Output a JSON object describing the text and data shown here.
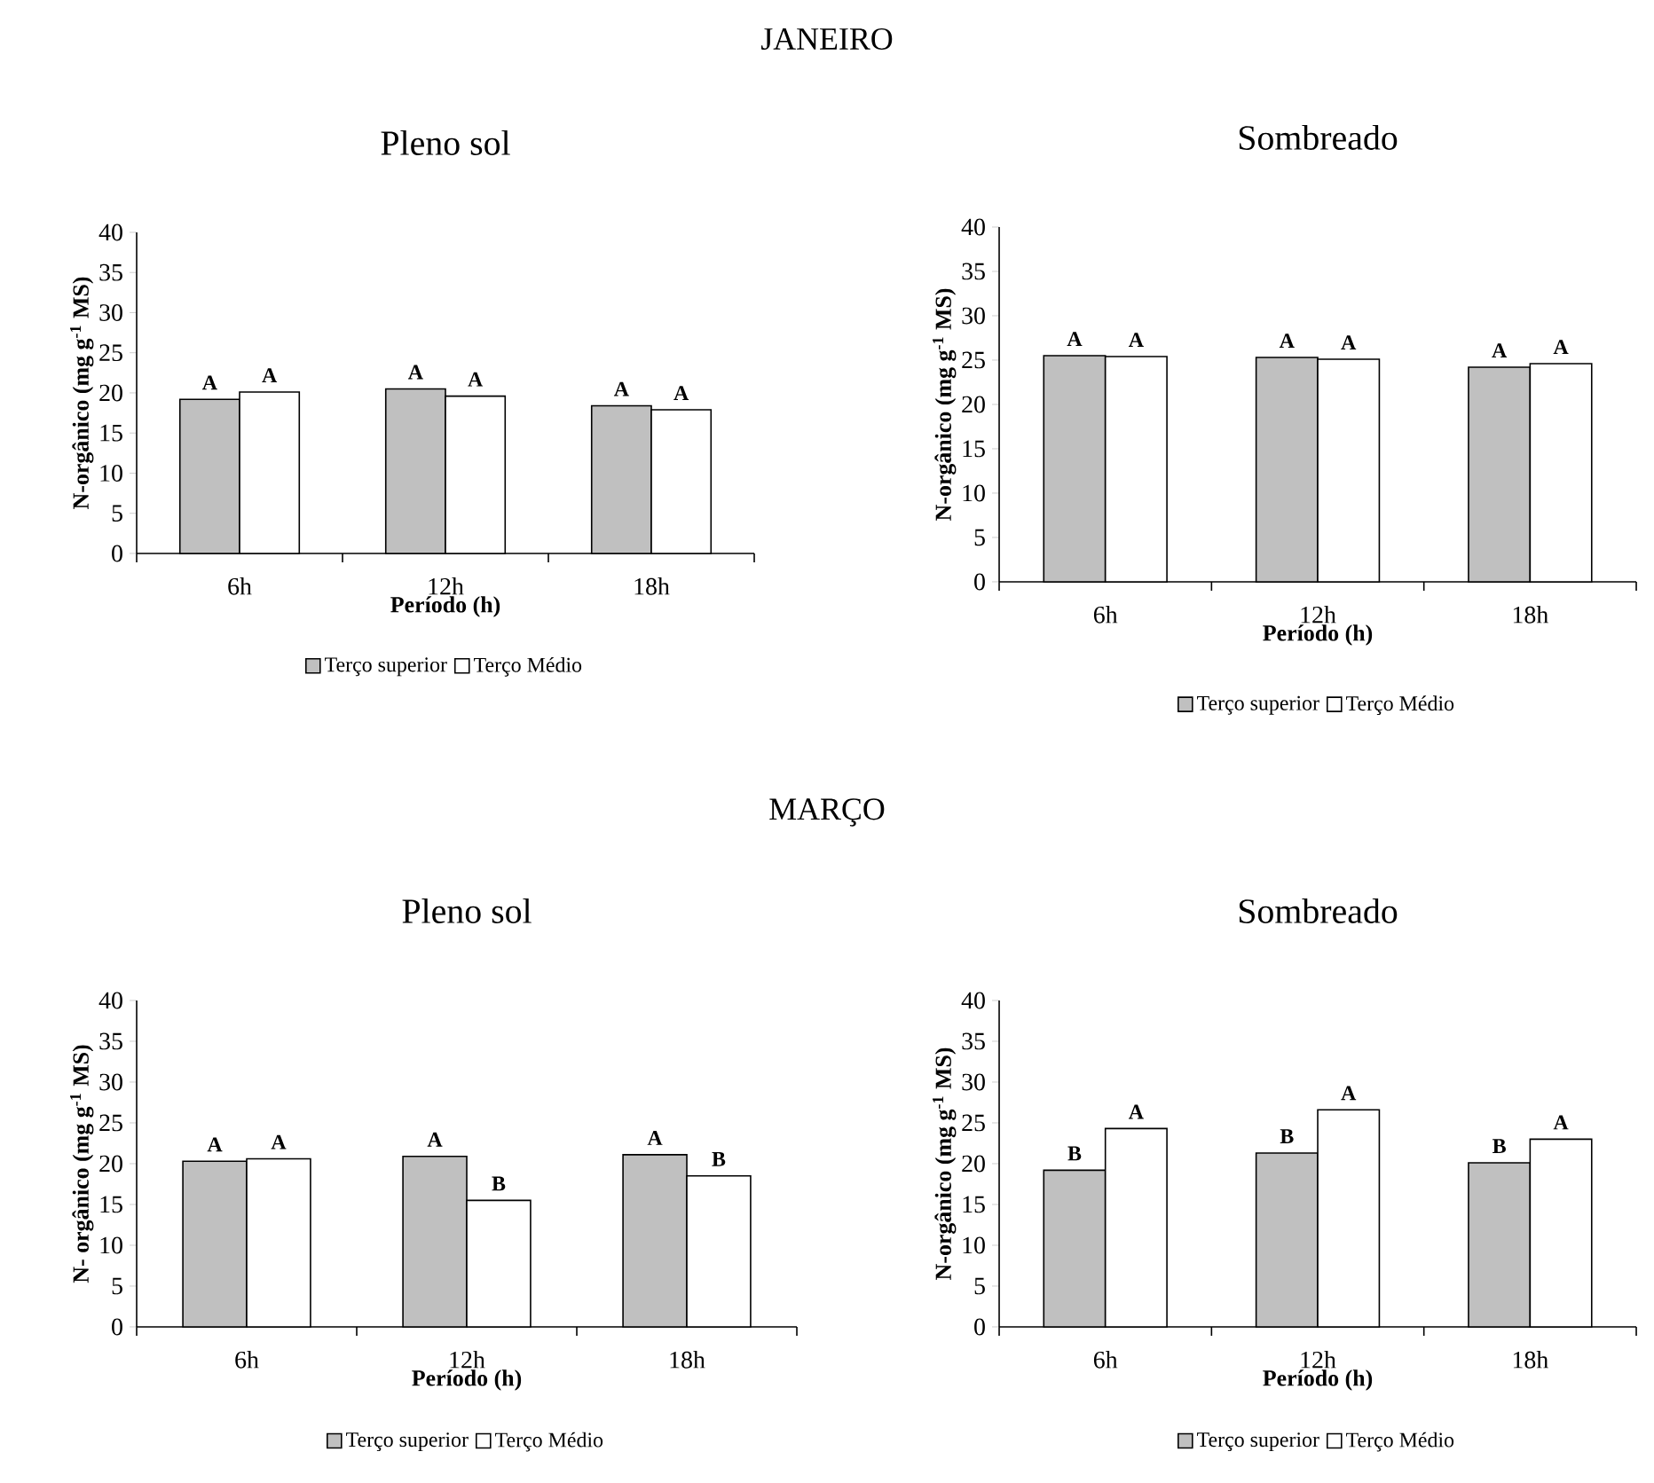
{
  "chart_data": [
    {
      "type": "bar",
      "title": "Pleno sol",
      "annotations": [
        "JANEIRO"
      ],
      "xlabel": "Período (h)",
      "ylabel": "N-orgânico (mg g$^{-1}$ MS)",
      "categories": [
        "6h",
        "12h",
        "18h"
      ],
      "ylim": [
        0,
        40
      ],
      "yticks": [
        0,
        5,
        10,
        15,
        20,
        25,
        30,
        35,
        40
      ],
      "legend": "bottom",
      "series": [
        {
          "name": "Terço superior",
          "color": "#c0c0c0",
          "values": [
            19.2,
            20.5,
            18.4
          ],
          "value_labels": [
            "A",
            "A",
            "A"
          ]
        },
        {
          "name": "Terço Médio",
          "color": "#ffffff",
          "values": [
            20.1,
            19.6,
            17.9
          ],
          "value_labels": [
            "A",
            "A",
            "A"
          ]
        }
      ]
    },
    {
      "type": "bar",
      "title": "Sombreado",
      "xlabel": "Período (h)",
      "ylabel": "N-orgânico (mg g$^{-1}$ MS)",
      "categories": [
        "6h",
        "12h",
        "18h"
      ],
      "ylim": [
        0,
        40
      ],
      "yticks": [
        0,
        5,
        10,
        15,
        20,
        25,
        30,
        35,
        40
      ],
      "legend": "bottom",
      "series": [
        {
          "name": "Terço superior",
          "color": "#c0c0c0",
          "values": [
            25.5,
            25.3,
            24.2
          ],
          "value_labels": [
            "A",
            "A",
            "A"
          ]
        },
        {
          "name": "Terço Médio",
          "color": "#ffffff",
          "values": [
            25.4,
            25.1,
            24.6
          ],
          "value_labels": [
            "A",
            "A",
            "A"
          ]
        }
      ]
    },
    {
      "type": "bar",
      "title": "Pleno sol",
      "annotations": [
        "MARÇO"
      ],
      "xlabel": "Período (h)",
      "ylabel": "N- orgânico (mg g$^{-1}$ MS)",
      "categories": [
        "6h",
        "12h",
        "18h"
      ],
      "ylim": [
        0,
        40
      ],
      "yticks": [
        0,
        5,
        10,
        15,
        20,
        25,
        30,
        35,
        40
      ],
      "legend": "bottom",
      "series": [
        {
          "name": "Terço superior",
          "color": "#c0c0c0",
          "values": [
            20.3,
            20.9,
            21.1
          ],
          "value_labels": [
            "A",
            "A",
            "A"
          ]
        },
        {
          "name": "Terço Médio",
          "color": "#ffffff",
          "values": [
            20.6,
            15.5,
            18.5
          ],
          "value_labels": [
            "A",
            "B",
            "B"
          ]
        }
      ]
    },
    {
      "type": "bar",
      "title": "Sombreado",
      "xlabel": "Período (h)",
      "ylabel": "N-orgânico (mg g$^{-1}$ MS)",
      "categories": [
        "6h",
        "12h",
        "18h"
      ],
      "ylim": [
        0,
        40
      ],
      "yticks": [
        0,
        5,
        10,
        15,
        20,
        25,
        30,
        35,
        40
      ],
      "legend": "bottom",
      "series": [
        {
          "name": "Terço superior",
          "color": "#c0c0c0",
          "values": [
            19.2,
            21.3,
            20.1
          ],
          "value_labels": [
            "B",
            "B",
            "B"
          ]
        },
        {
          "name": "Terço Médio",
          "color": "#ffffff",
          "values": [
            24.3,
            26.6,
            23.0
          ],
          "value_labels": [
            "A",
            "A",
            "A"
          ]
        }
      ]
    }
  ]
}
